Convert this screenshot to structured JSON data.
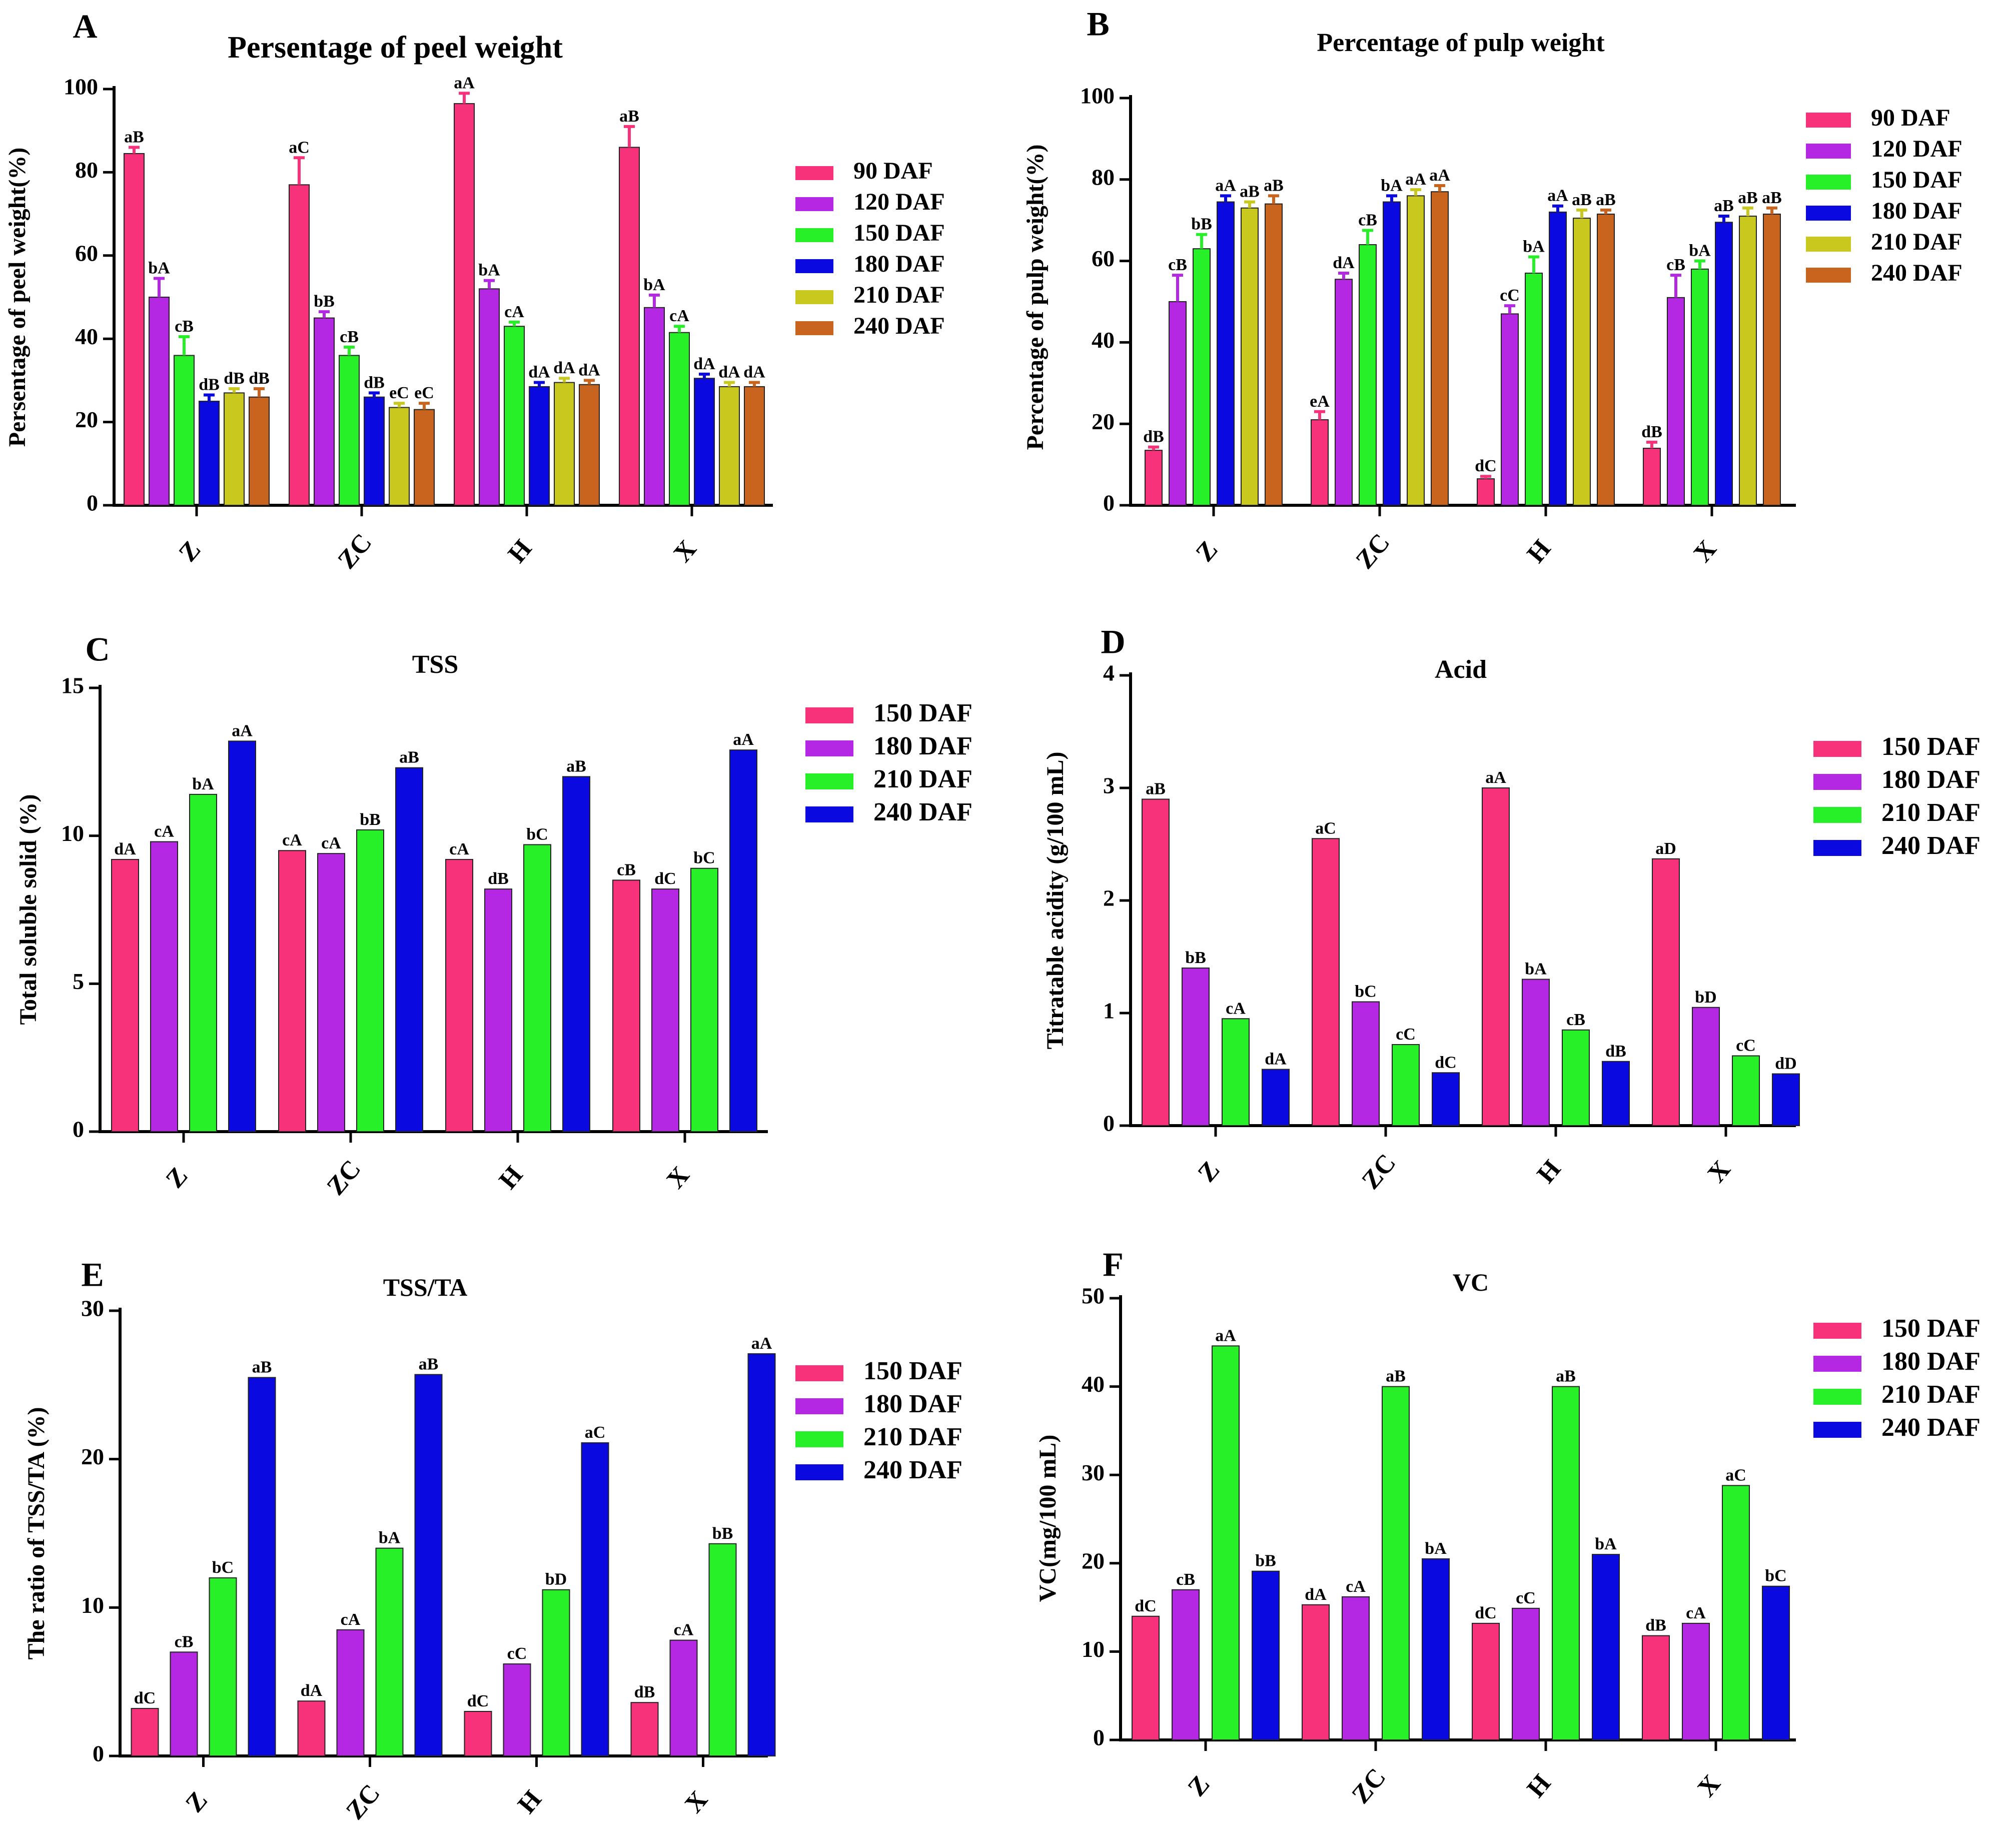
{
  "colors": {
    "90 DAF": "#f7327a",
    "120 DAF": "#b428e4",
    "150 DAF": "#28f028",
    "180 DAF": "#0a0ae0",
    "210 DAF": "#c8c81e",
    "240 DAF": "#c8641e",
    "150 DAF (C-F)": "#f7327a",
    "180 DAF (C-F)": "#b428e4",
    "210 DAF (C-F)": "#28f028",
    "240 DAF (C-F)": "#0a0ae0"
  },
  "chart_data": [
    {
      "panel": "A",
      "type": "bar",
      "title": "Persentage of peel weight",
      "ylabel": "Persentage of peel weight(%)",
      "xlabel": "",
      "categories": [
        "Z",
        "ZC",
        "H",
        "X"
      ],
      "ylim": [
        0,
        100
      ],
      "yticks": [
        0,
        20,
        40,
        60,
        80,
        100
      ],
      "error_bars": true,
      "series": [
        {
          "name": "90 DAF",
          "values": [
            84.5,
            77,
            96.5,
            86
          ],
          "errors": [
            1.5,
            6.5,
            2.5,
            5
          ],
          "labels": [
            "aB",
            "aC",
            "aA",
            "aB"
          ]
        },
        {
          "name": "120 DAF",
          "values": [
            50,
            45,
            52,
            47.5
          ],
          "errors": [
            4.5,
            1.5,
            2,
            3
          ],
          "labels": [
            "bA",
            "bB",
            "bA",
            "bA"
          ]
        },
        {
          "name": "150 DAF",
          "values": [
            36,
            36,
            43,
            41.5
          ],
          "errors": [
            4.5,
            2,
            1,
            1.5
          ],
          "labels": [
            "cB",
            "cB",
            "cA",
            "cA"
          ]
        },
        {
          "name": "180 DAF",
          "values": [
            25,
            26,
            28.5,
            30.5
          ],
          "errors": [
            1.5,
            1,
            1,
            1
          ],
          "labels": [
            "dB",
            "dB",
            "dA",
            "dA"
          ]
        },
        {
          "name": "210 DAF",
          "values": [
            27,
            23.5,
            29.5,
            28.5
          ],
          "errors": [
            1,
            1,
            1,
            1
          ],
          "labels": [
            "dB",
            "eC",
            "dA",
            "dA"
          ]
        },
        {
          "name": "240 DAF",
          "values": [
            26,
            23,
            29,
            28.5
          ],
          "errors": [
            2,
            1.5,
            1,
            1
          ],
          "labels": [
            "dB",
            "eC",
            "dA",
            "dA"
          ]
        }
      ]
    },
    {
      "panel": "B",
      "type": "bar",
      "title": "Percentage of pulp weight",
      "ylabel": "Percentage of pulp weight(%)",
      "xlabel": "",
      "categories": [
        "Z",
        "ZC",
        "H",
        "X"
      ],
      "ylim": [
        0,
        100
      ],
      "yticks": [
        0,
        20,
        40,
        60,
        80,
        100
      ],
      "error_bars": true,
      "series": [
        {
          "name": "90 DAF",
          "values": [
            13.5,
            21,
            6.5,
            14
          ],
          "errors": [
            0.8,
            2,
            0.6,
            1.5
          ],
          "labels": [
            "dB",
            "eA",
            "dC",
            "dB"
          ]
        },
        {
          "name": "120 DAF",
          "values": [
            50,
            55.5,
            47,
            51
          ],
          "errors": [
            6.5,
            1.5,
            2,
            5.5
          ],
          "labels": [
            "cB",
            "dA",
            "cC",
            "cB"
          ]
        },
        {
          "name": "150 DAF",
          "values": [
            63,
            64,
            57,
            58
          ],
          "errors": [
            3.5,
            3.5,
            4,
            2
          ],
          "labels": [
            "bB",
            "cB",
            "bA",
            "bA"
          ]
        },
        {
          "name": "180 DAF",
          "values": [
            74.5,
            74.5,
            72,
            69.5
          ],
          "errors": [
            1.5,
            1.5,
            1.5,
            1.5
          ],
          "labels": [
            "aA",
            "bA",
            "aA",
            "aB"
          ]
        },
        {
          "name": "210 DAF",
          "values": [
            73,
            76,
            70.5,
            71
          ],
          "errors": [
            1.5,
            1.5,
            2,
            2
          ],
          "labels": [
            "aB",
            "aA",
            "aB",
            "aB"
          ]
        },
        {
          "name": "240 DAF",
          "values": [
            74,
            77,
            71.5,
            71.5
          ],
          "errors": [
            2,
            1.5,
            1,
            1.5
          ],
          "labels": [
            "aB",
            "aA",
            "aB",
            "aB"
          ]
        }
      ]
    },
    {
      "panel": "C",
      "type": "bar",
      "title": "TSS",
      "ylabel": "Total soluble solid (%)",
      "xlabel": "",
      "categories": [
        "Z",
        "ZC",
        "H",
        "X"
      ],
      "ylim": [
        0,
        15
      ],
      "yticks": [
        0,
        5,
        10,
        15
      ],
      "error_bars": false,
      "series": [
        {
          "name": "150 DAF",
          "values": [
            9.2,
            9.5,
            9.2,
            8.5
          ],
          "labels": [
            "dA",
            "cA",
            "cA",
            "cB"
          ]
        },
        {
          "name": "180 DAF",
          "values": [
            9.8,
            9.4,
            8.2,
            8.2
          ],
          "labels": [
            "cA",
            "cA",
            "dB",
            "dC"
          ]
        },
        {
          "name": "210 DAF",
          "values": [
            11.4,
            10.2,
            9.7,
            8.9
          ],
          "labels": [
            "bA",
            "bB",
            "bC",
            "bC"
          ]
        },
        {
          "name": "240 DAF",
          "values": [
            13.2,
            12.3,
            12.0,
            12.9
          ],
          "labels": [
            "aA",
            "aB",
            "aB",
            "aA"
          ]
        }
      ]
    },
    {
      "panel": "D",
      "type": "bar",
      "title": "Acid",
      "ylabel": "Titratable acidity  (g/100 mL)",
      "xlabel": "",
      "categories": [
        "Z",
        "ZC",
        "H",
        "X"
      ],
      "ylim": [
        0,
        4
      ],
      "yticks": [
        0,
        1,
        2,
        3,
        4
      ],
      "error_bars": false,
      "series": [
        {
          "name": "150 DAF",
          "values": [
            2.9,
            2.55,
            3.0,
            2.37
          ],
          "labels": [
            "aB",
            "aC",
            "aA",
            "aD"
          ]
        },
        {
          "name": "180 DAF",
          "values": [
            1.4,
            1.1,
            1.3,
            1.05
          ],
          "labels": [
            "bB",
            "bC",
            "bA",
            "bD"
          ]
        },
        {
          "name": "210 DAF",
          "values": [
            0.95,
            0.72,
            0.85,
            0.62
          ],
          "labels": [
            "cA",
            "cC",
            "cB",
            "cC"
          ]
        },
        {
          "name": "240 DAF",
          "values": [
            0.5,
            0.47,
            0.57,
            0.46
          ],
          "labels": [
            "dA",
            "dC",
            "dB",
            "dD"
          ]
        }
      ]
    },
    {
      "panel": "E",
      "type": "bar",
      "title": "TSS/TA",
      "ylabel": "The ratio of TSS/TA (%)",
      "xlabel": "",
      "categories": [
        "Z",
        "ZC",
        "H",
        "X"
      ],
      "ylim": [
        0,
        30
      ],
      "yticks": [
        0,
        10,
        20,
        30
      ],
      "error_bars": false,
      "series": [
        {
          "name": "150 DAF",
          "values": [
            3.2,
            3.7,
            3.0,
            3.6
          ],
          "labels": [
            "dC",
            "dA",
            "dC",
            "dB"
          ]
        },
        {
          "name": "180 DAF",
          "values": [
            7.0,
            8.5,
            6.2,
            7.8
          ],
          "labels": [
            "cB",
            "cA",
            "cC",
            "cA"
          ]
        },
        {
          "name": "210 DAF",
          "values": [
            12.0,
            14.0,
            11.2,
            14.3
          ],
          "labels": [
            "bC",
            "bA",
            "bD",
            "bB"
          ]
        },
        {
          "name": "240 DAF",
          "values": [
            25.5,
            25.7,
            21.1,
            27.1
          ],
          "labels": [
            "aB",
            "aB",
            "aC",
            "aA"
          ]
        }
      ]
    },
    {
      "panel": "F",
      "type": "bar",
      "title": "VC",
      "ylabel": "VC(mg/100 mL)",
      "xlabel": "",
      "categories": [
        "Z",
        "ZC",
        "H",
        "X"
      ],
      "ylim": [
        0,
        50
      ],
      "yticks": [
        0,
        10,
        20,
        30,
        40,
        50
      ],
      "error_bars": false,
      "series": [
        {
          "name": "150 DAF",
          "values": [
            14.0,
            15.3,
            13.2,
            11.8
          ],
          "labels": [
            "dC",
            "dA",
            "dC",
            "dB"
          ]
        },
        {
          "name": "180 DAF",
          "values": [
            17.0,
            16.2,
            14.9,
            13.2
          ],
          "labels": [
            "cB",
            "cA",
            "cC",
            "cA"
          ]
        },
        {
          "name": "210 DAF",
          "values": [
            44.6,
            40.0,
            40.0,
            28.8
          ],
          "labels": [
            "aA",
            "aB",
            "aB",
            "aC"
          ]
        },
        {
          "name": "240 DAF",
          "values": [
            19.1,
            20.5,
            21.0,
            17.4
          ],
          "labels": [
            "bB",
            "bA",
            "bA",
            "bC"
          ]
        }
      ]
    }
  ]
}
